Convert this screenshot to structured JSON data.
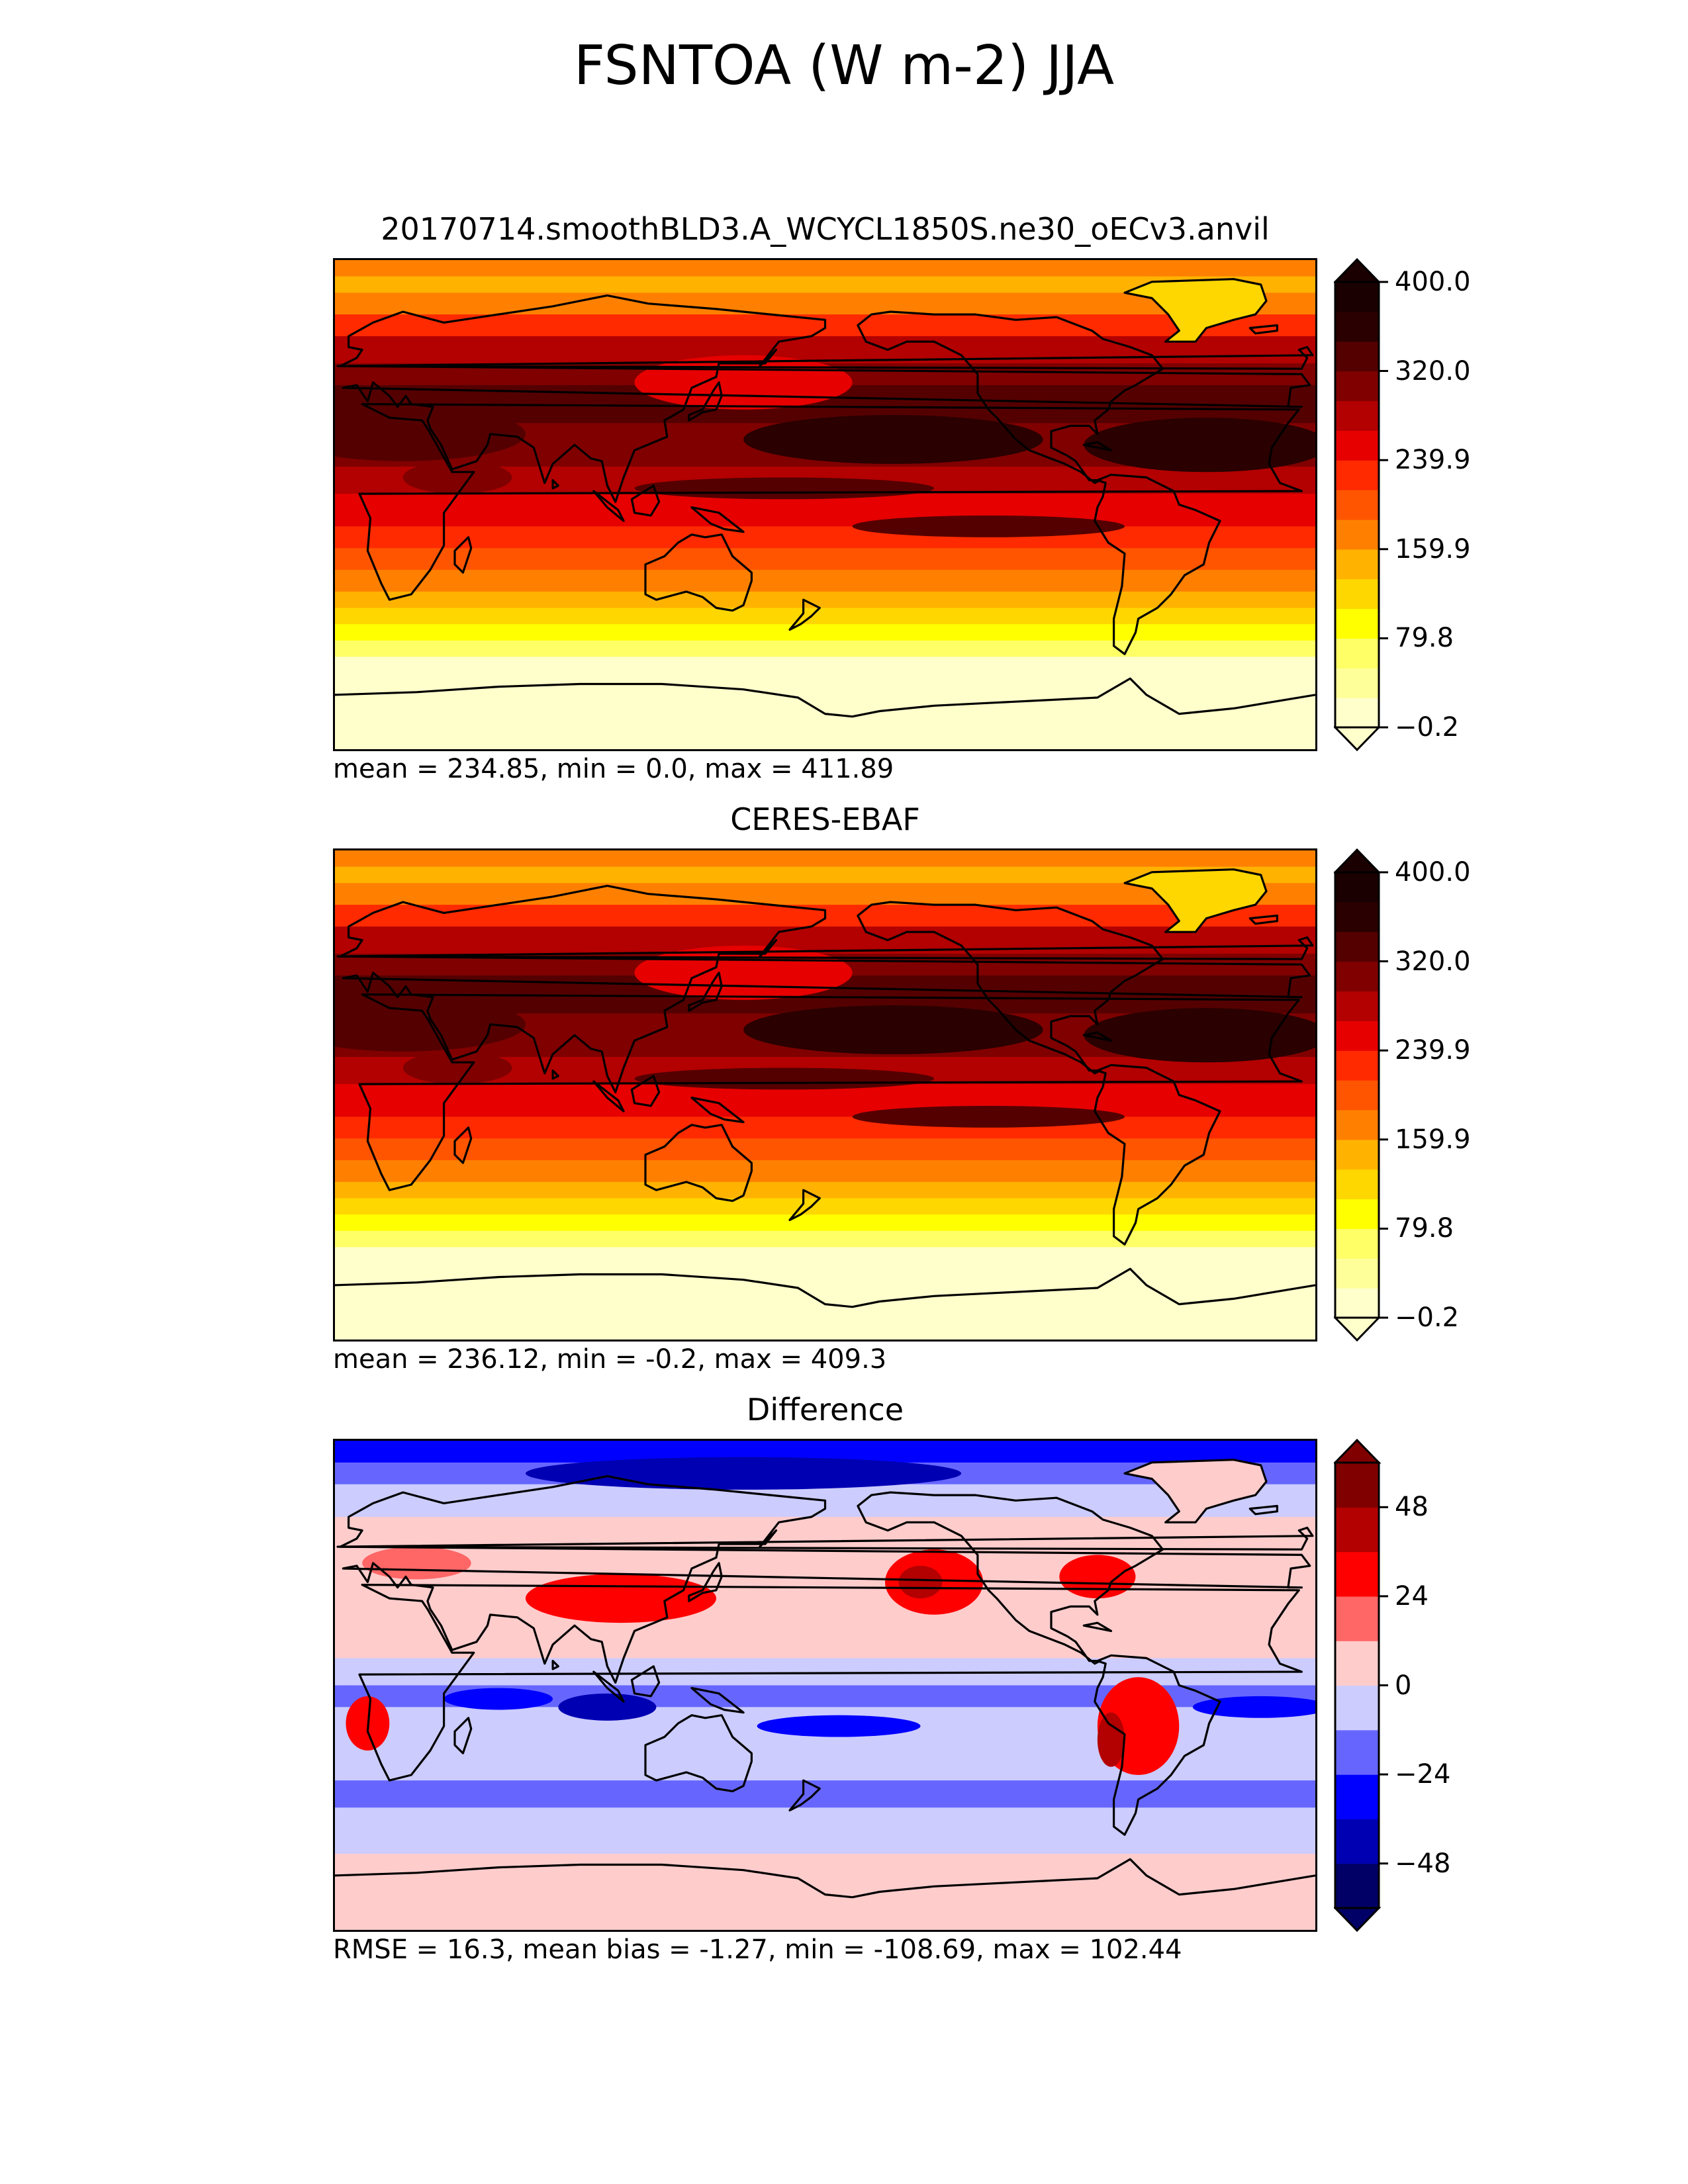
{
  "figure": {
    "title": "FSNTOA (W m-2) JJA"
  },
  "chart_data": [
    {
      "type": "heatmap",
      "title": "20170714.smoothBLD3.A_WCYCL1850S.ne30_oECv3.anvil",
      "stats": "mean = 234.85, min = 0.0, max = 411.89",
      "colorbar": {
        "ticks": [
          "400.0",
          "320.0",
          "239.9",
          "159.9",
          "79.8",
          "−0.2"
        ],
        "tick_values": [
          400.0,
          320.0,
          239.9,
          159.9,
          79.8,
          -0.2
        ],
        "range": [
          -0.2,
          400.0
        ],
        "extend": "both",
        "colors": [
          "#ffffcc",
          "#ffff99",
          "#ffff66",
          "#ffff00",
          "#ffd700",
          "#ffb300",
          "#ff8000",
          "#ff5500",
          "#ff2a00",
          "#e60000",
          "#b30000",
          "#800000",
          "#550000",
          "#2a0000",
          "#1a0000"
        ]
      }
    },
    {
      "type": "heatmap",
      "title": "CERES-EBAF",
      "stats": "mean = 236.12, min = -0.2, max = 409.3",
      "colorbar": {
        "ticks": [
          "400.0",
          "320.0",
          "239.9",
          "159.9",
          "79.8",
          "−0.2"
        ],
        "tick_values": [
          400.0,
          320.0,
          239.9,
          159.9,
          79.8,
          -0.2
        ],
        "range": [
          -0.2,
          400.0
        ],
        "extend": "both",
        "colors": [
          "#ffffcc",
          "#ffff99",
          "#ffff66",
          "#ffff00",
          "#ffd700",
          "#ffb300",
          "#ff8000",
          "#ff5500",
          "#ff2a00",
          "#e60000",
          "#b30000",
          "#800000",
          "#550000",
          "#2a0000",
          "#1a0000"
        ]
      }
    },
    {
      "type": "heatmap",
      "title": "Difference",
      "stats": "RMSE = 16.3, mean bias = -1.27, min = -108.69, max = 102.44",
      "colorbar": {
        "ticks": [
          "48",
          "24",
          "0",
          "−24",
          "−48"
        ],
        "tick_values": [
          48,
          24,
          0,
          -24,
          -48
        ],
        "range": [
          -60,
          60
        ],
        "extend": "both",
        "colors": [
          "#000066",
          "#0000b3",
          "#0000ff",
          "#6666ff",
          "#ccccff",
          "#ffcccc",
          "#ff6666",
          "#ff0000",
          "#b30000",
          "#800000"
        ]
      }
    }
  ]
}
